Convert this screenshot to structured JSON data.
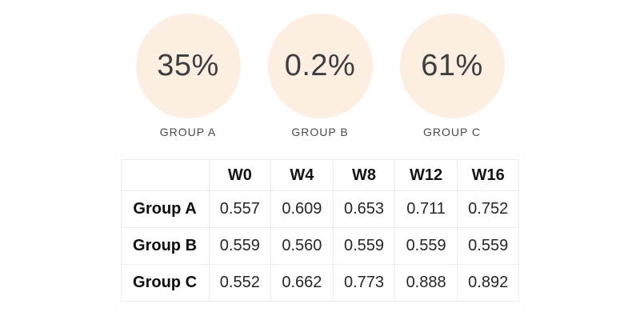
{
  "groups": [
    {
      "value": "35%",
      "label": "GROUP A"
    },
    {
      "value": "0.2%",
      "label": "GROUP B"
    },
    {
      "value": "61%",
      "label": "GROUP C"
    }
  ],
  "table": {
    "headers": {
      "blank": "",
      "c1": "W0",
      "c2": "W4",
      "c3": "W8",
      "c4": "W12",
      "c5": "W16"
    },
    "rows": [
      {
        "label": "Group A",
        "values": [
          "0.557",
          "0.609",
          "0.653",
          "0.711",
          "0.752"
        ]
      },
      {
        "label": "Group B",
        "values": [
          "0.559",
          "0.560",
          "0.559",
          "0.559",
          "0.559"
        ]
      },
      {
        "label": "Group C",
        "values": [
          "0.552",
          "0.662",
          "0.773",
          "0.888",
          "0.892"
        ]
      }
    ]
  },
  "colors": {
    "circle_fill": "#FCEEE1",
    "percent_text": "#3E3E3E",
    "group_label_text": "#4A4A4A",
    "table_border": "#ECECEC",
    "background": "#FFFFFF"
  },
  "chart_data": {
    "type": "table",
    "title": "",
    "kpis": [
      {
        "label": "GROUP A",
        "value_percent": 35
      },
      {
        "label": "GROUP B",
        "value_percent": 0.2
      },
      {
        "label": "GROUP C",
        "value_percent": 61
      }
    ],
    "categories": [
      "W0",
      "W4",
      "W8",
      "W12",
      "W16"
    ],
    "series": [
      {
        "name": "Group A",
        "values": [
          0.557,
          0.609,
          0.653,
          0.711,
          0.752
        ]
      },
      {
        "name": "Group B",
        "values": [
          0.559,
          0.56,
          0.559,
          0.559,
          0.559
        ]
      },
      {
        "name": "Group C",
        "values": [
          0.552,
          0.662,
          0.773,
          0.888,
          0.892
        ]
      }
    ],
    "layout": "three KPI circles above a bordered grid table, all centered on white"
  }
}
